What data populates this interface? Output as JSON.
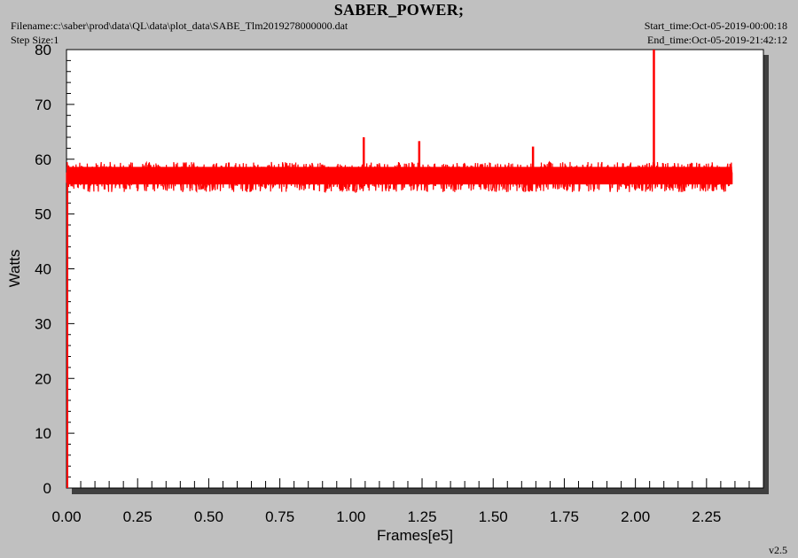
{
  "header": {
    "title": "SABER_POWER;",
    "filename": "Filename:c:\\saber\\prod\\data\\QL\\data\\plot_data\\SABE_Tlm2019278000000.dat",
    "step_size": "Step Size:1",
    "start_time": "Start_time:Oct-05-2019-00:00:18",
    "end_time": "End_time:Oct-05-2019-21:42:12",
    "version": "v2.5"
  },
  "colors": {
    "background": "#c0c0c0",
    "plot_area": "#ffffff",
    "series": "#ff0000",
    "shadow": "#404040"
  },
  "chart_data": {
    "type": "line",
    "title": "SABER_POWER;",
    "xlabel": "Frames[e5]",
    "ylabel": "Watts",
    "xlim": [
      0,
      2.45
    ],
    "ylim": [
      0,
      80
    ],
    "x_ticks": [
      "0.00",
      "0.25",
      "0.50",
      "0.75",
      "1.00",
      "1.25",
      "1.50",
      "1.75",
      "2.00",
      "2.25"
    ],
    "y_ticks": [
      "0",
      "10",
      "20",
      "30",
      "40",
      "50",
      "60",
      "70",
      "80"
    ],
    "grid": false,
    "series": [
      {
        "color": "#ff0000",
        "x_start": 0.0,
        "x_end": 2.34,
        "band_mean": 57,
        "band_min": 54,
        "band_max": 59.5,
        "spikes": [
          {
            "x": 1.045,
            "y": 64
          },
          {
            "x": 1.24,
            "y": 63.3
          },
          {
            "x": 1.64,
            "y": 62.3
          },
          {
            "x": 2.065,
            "y": 80
          }
        ]
      }
    ]
  }
}
